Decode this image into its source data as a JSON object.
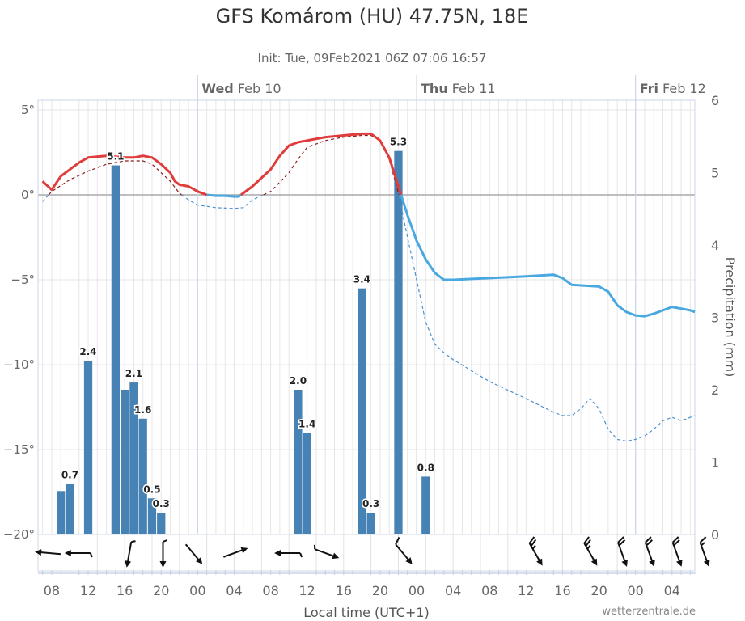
{
  "chart_data": {
    "type": "meteogram",
    "title": "GFS Komárom (HU) 47.75N, 18E",
    "subtitle": "Init: Tue, 09Feb2021 06Z 07:06 16:57",
    "xlabel": "Local time (UTC+1)",
    "ylabel_right": "Precipitation (mm)",
    "credit": "wetterzentrale.de",
    "x_range_hours": [
      6.5,
      78.5
    ],
    "x_ticks": [
      {
        "h": 8,
        "label": "08"
      },
      {
        "h": 12,
        "label": "12"
      },
      {
        "h": 16,
        "label": "16"
      },
      {
        "h": 20,
        "label": "20"
      },
      {
        "h": 24,
        "label": "00"
      },
      {
        "h": 28,
        "label": "04"
      },
      {
        "h": 32,
        "label": "08"
      },
      {
        "h": 36,
        "label": "12"
      },
      {
        "h": 40,
        "label": "16"
      },
      {
        "h": 44,
        "label": "20"
      },
      {
        "h": 48,
        "label": "00"
      },
      {
        "h": 52,
        "label": "04"
      },
      {
        "h": 56,
        "label": "08"
      },
      {
        "h": 60,
        "label": "12"
      },
      {
        "h": 64,
        "label": "16"
      },
      {
        "h": 68,
        "label": "20"
      },
      {
        "h": 72,
        "label": "00"
      },
      {
        "h": 76,
        "label": "04"
      }
    ],
    "days": [
      {
        "h": 24,
        "weekday": "Wed",
        "date": "Feb 10"
      },
      {
        "h": 48,
        "weekday": "Thu",
        "date": "Feb 11"
      },
      {
        "h": 72,
        "weekday": "Fri",
        "date": "Feb 12"
      }
    ],
    "temp_axis": {
      "min": -20,
      "max": 5,
      "ticks": [
        {
          "v": 5,
          "label": "5°"
        },
        {
          "v": 0,
          "label": "0°"
        },
        {
          "v": -5,
          "label": "−5°"
        },
        {
          "v": -10,
          "label": "−10°"
        },
        {
          "v": -15,
          "label": "−15°"
        },
        {
          "v": -20,
          "label": "−20°"
        }
      ]
    },
    "precip_axis": {
      "min": 0,
      "max": 6,
      "ticks": [
        {
          "v": 0,
          "label": "0"
        },
        {
          "v": 1,
          "label": "1"
        },
        {
          "v": 2,
          "label": "2"
        },
        {
          "v": 3,
          "label": "3"
        },
        {
          "v": 4,
          "label": "4"
        },
        {
          "v": 5,
          "label": "5"
        },
        {
          "v": 6,
          "label": "6"
        }
      ]
    },
    "temperature_2m": [
      [
        7,
        0.8
      ],
      [
        8,
        0.3
      ],
      [
        9,
        1.1
      ],
      [
        11,
        1.9
      ],
      [
        12,
        2.2
      ],
      [
        14,
        2.3
      ],
      [
        16,
        2.2
      ],
      [
        17,
        2.2
      ],
      [
        18,
        2.3
      ],
      [
        19,
        2.2
      ],
      [
        20,
        1.8
      ],
      [
        21,
        1.3
      ],
      [
        21.5,
        0.8
      ],
      [
        22,
        0.6
      ],
      [
        23,
        0.5
      ],
      [
        24,
        0.2
      ],
      [
        25,
        0.0
      ],
      [
        26,
        -0.05
      ],
      [
        27,
        -0.05
      ],
      [
        28,
        -0.1
      ],
      [
        28.5,
        -0.1
      ],
      [
        30,
        0.5
      ],
      [
        31,
        1.0
      ],
      [
        32,
        1.5
      ],
      [
        33,
        2.3
      ],
      [
        34,
        2.9
      ],
      [
        35,
        3.1
      ],
      [
        36,
        3.2
      ],
      [
        37,
        3.3
      ],
      [
        38,
        3.4
      ],
      [
        40,
        3.5
      ],
      [
        42,
        3.6
      ],
      [
        43,
        3.6
      ],
      [
        44,
        3.2
      ],
      [
        45,
        2.2
      ],
      [
        46,
        0.5
      ],
      [
        47,
        -1.2
      ],
      [
        48,
        -2.7
      ],
      [
        49,
        -3.8
      ],
      [
        50,
        -4.6
      ],
      [
        51,
        -5.0
      ],
      [
        52,
        -5.0
      ],
      [
        56,
        -4.9
      ],
      [
        60,
        -4.8
      ],
      [
        63,
        -4.7
      ],
      [
        64,
        -4.9
      ],
      [
        65,
        -5.3
      ],
      [
        68,
        -5.4
      ],
      [
        69,
        -5.7
      ],
      [
        70,
        -6.5
      ],
      [
        71,
        -6.9
      ],
      [
        72,
        -7.1
      ],
      [
        73,
        -7.15
      ],
      [
        74,
        -7.0
      ],
      [
        75,
        -6.8
      ],
      [
        76,
        -6.6
      ],
      [
        77,
        -6.7
      ],
      [
        78,
        -6.8
      ],
      [
        78.5,
        -6.9
      ]
    ],
    "dewpoint": [
      [
        7,
        -0.4
      ],
      [
        8,
        0.2
      ],
      [
        10,
        0.9
      ],
      [
        12,
        1.4
      ],
      [
        14,
        1.8
      ],
      [
        16,
        2.0
      ],
      [
        18,
        2.0
      ],
      [
        19,
        1.8
      ],
      [
        20,
        1.3
      ],
      [
        21,
        0.8
      ],
      [
        22,
        0.1
      ],
      [
        23,
        -0.3
      ],
      [
        24,
        -0.6
      ],
      [
        26,
        -0.75
      ],
      [
        28,
        -0.8
      ],
      [
        29,
        -0.75
      ],
      [
        30,
        -0.3
      ],
      [
        32,
        0.2
      ],
      [
        34,
        1.3
      ],
      [
        35,
        2.1
      ],
      [
        36,
        2.8
      ],
      [
        38,
        3.2
      ],
      [
        40,
        3.4
      ],
      [
        42,
        3.5
      ],
      [
        43,
        3.5
      ],
      [
        44,
        3.2
      ],
      [
        45,
        2.1
      ],
      [
        46,
        0.1
      ],
      [
        47,
        -2.5
      ],
      [
        48,
        -5.0
      ],
      [
        49,
        -7.5
      ],
      [
        50,
        -8.8
      ],
      [
        51,
        -9.3
      ],
      [
        52,
        -9.7
      ],
      [
        56,
        -11.0
      ],
      [
        60,
        -12.0
      ],
      [
        63,
        -12.8
      ],
      [
        64,
        -13.0
      ],
      [
        65,
        -13.0
      ],
      [
        66,
        -12.6
      ],
      [
        67,
        -12.0
      ],
      [
        68,
        -12.6
      ],
      [
        69,
        -13.8
      ],
      [
        70,
        -14.4
      ],
      [
        71,
        -14.5
      ],
      [
        72,
        -14.4
      ],
      [
        73,
        -14.2
      ],
      [
        74,
        -13.8
      ],
      [
        75,
        -13.3
      ],
      [
        76,
        -13.1
      ],
      [
        77,
        -13.3
      ],
      [
        78,
        -13.1
      ],
      [
        78.5,
        -13.0
      ]
    ],
    "precipitation": [
      {
        "h": 9,
        "v": 0.6
      },
      {
        "h": 10,
        "v": 0.7,
        "label": "0.7"
      },
      {
        "h": 12,
        "v": 2.4,
        "label": "2.4"
      },
      {
        "h": 15,
        "v": 5.1,
        "label": "5.1"
      },
      {
        "h": 16,
        "v": 2.0
      },
      {
        "h": 17,
        "v": 2.1,
        "label": "2.1"
      },
      {
        "h": 18,
        "v": 1.6,
        "label": "1.6"
      },
      {
        "h": 19,
        "v": 0.5,
        "label": "0.5"
      },
      {
        "h": 20,
        "v": 0.3,
        "label": "0.3"
      },
      {
        "h": 35,
        "v": 2.0,
        "label": "2.0"
      },
      {
        "h": 36,
        "v": 1.4,
        "label": "1.4"
      },
      {
        "h": 42,
        "v": 3.4,
        "label": "3.4"
      },
      {
        "h": 43,
        "v": 0.3,
        "label": "0.3"
      },
      {
        "h": 46,
        "v": 5.3,
        "label": "5.3"
      },
      {
        "h": 49,
        "v": 0.8,
        "label": "0.8"
      }
    ],
    "colors": {
      "temp_above_zero": "#e03c3c",
      "temp_below_zero": "#4aa8e0",
      "dewpoint_above_zero": "#8b1a1a",
      "dewpoint_below_zero": "#4a90d0",
      "precip_bar": "#4682b4",
      "grid": "#e6e6e6",
      "zero_line": "#aaaaaa"
    },
    "wind_barbs": [
      {
        "h": 7.5,
        "dir": 95,
        "kn": 0
      },
      {
        "h": 11,
        "dir": 90,
        "kn": 5
      },
      {
        "h": 16.5,
        "dir": 10,
        "kn": 5
      },
      {
        "h": 20.2,
        "dir": 0,
        "kn": 5
      },
      {
        "h": 23.5,
        "dir": 320,
        "kn": 0
      },
      {
        "h": 28,
        "dir": 250,
        "kn": 0
      },
      {
        "h": 34,
        "dir": 90,
        "kn": 5
      },
      {
        "h": 38,
        "dir": 290,
        "kn": 5
      },
      {
        "h": 46.5,
        "dir": 320,
        "kn": 10
      },
      {
        "h": 61,
        "dir": 330,
        "kn": 25
      },
      {
        "h": 67,
        "dir": 330,
        "kn": 25
      },
      {
        "h": 70.5,
        "dir": 340,
        "kn": 20
      },
      {
        "h": 73.5,
        "dir": 340,
        "kn": 20
      },
      {
        "h": 76.5,
        "dir": 340,
        "kn": 20
      },
      {
        "h": 79.5,
        "dir": 340,
        "kn": 15
      }
    ]
  }
}
